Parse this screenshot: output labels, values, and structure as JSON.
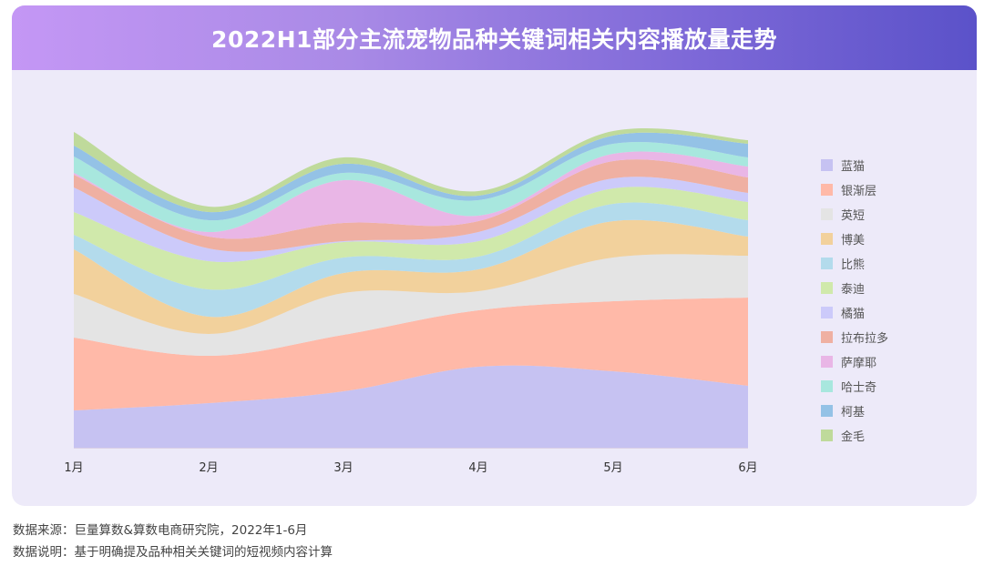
{
  "chart_data": {
    "type": "area",
    "stacked": true,
    "title": "2022H1部分主流宠物品种关键词相关内容播放量走势",
    "categories": [
      "1月",
      "2月",
      "3月",
      "4月",
      "5月",
      "6月"
    ],
    "ylim": [
      0,
      350
    ],
    "grid": false,
    "legend_position": "right",
    "series": [
      {
        "name": "蓝猫",
        "color": "#c6c2f2",
        "values": [
          41,
          49,
          62,
          89,
          84,
          68
        ]
      },
      {
        "name": "银渐层",
        "color": "#ffb9a8",
        "values": [
          80,
          52,
          62,
          62,
          77,
          97
        ]
      },
      {
        "name": "英短",
        "color": "#e4e4e4",
        "values": [
          48,
          24,
          46,
          21,
          48,
          46
        ]
      },
      {
        "name": "博美",
        "color": "#f2d19c",
        "values": [
          49,
          19,
          22,
          24,
          40,
          21
        ]
      },
      {
        "name": "比熊",
        "color": "#b3dbec",
        "values": [
          16,
          30,
          17,
          14,
          19,
          18
        ]
      },
      {
        "name": "泰迪",
        "color": "#d0e9ab",
        "values": [
          25,
          31,
          17,
          17,
          17,
          20
        ]
      },
      {
        "name": "橘猫",
        "color": "#cccafa",
        "values": [
          27,
          14,
          1,
          10,
          11,
          10
        ]
      },
      {
        "name": "拉布拉多",
        "color": "#efb0a2",
        "values": [
          14,
          13,
          20,
          12,
          19,
          17
        ]
      },
      {
        "name": "萨摩耶",
        "color": "#e9b6e6",
        "values": [
          2,
          5,
          47,
          6,
          8,
          12
        ]
      },
      {
        "name": "哈士奇",
        "color": "#a8e7de",
        "values": [
          18,
          13,
          8,
          17,
          11,
          10
        ]
      },
      {
        "name": "柯基",
        "color": "#94c2e6",
        "values": [
          12,
          9,
          10,
          5,
          9,
          15
        ]
      },
      {
        "name": "金毛",
        "color": "#bfda9b",
        "values": [
          15,
          6,
          7,
          5,
          5,
          4
        ]
      }
    ]
  },
  "footer": {
    "source": "数据来源：巨量算数&算数电商研究院，2022年1-6月",
    "note": "数据说明：基于明确提及品种相关关键词的短视频内容计算"
  }
}
